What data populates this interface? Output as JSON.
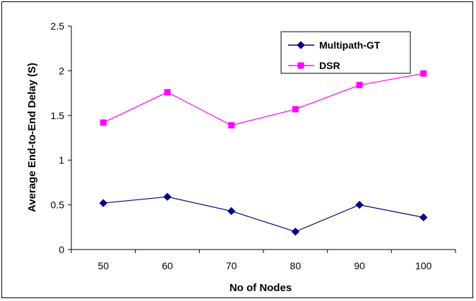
{
  "chart_data": {
    "type": "line",
    "title": "",
    "xlabel": "No of Nodes",
    "ylabel": "Average End-to-End Delay (S)",
    "categories": [
      "50",
      "60",
      "70",
      "80",
      "90",
      "100"
    ],
    "ylim": [
      0,
      2.5
    ],
    "yticks": [
      "0",
      "0.5",
      "1",
      "1.5",
      "2",
      "2.5"
    ],
    "grid": false,
    "legend_position": "top-right",
    "series": [
      {
        "name": "Multipath-GT",
        "values": [
          0.52,
          0.59,
          0.43,
          0.2,
          0.5,
          0.36
        ],
        "color": "#000080",
        "marker": "diamond"
      },
      {
        "name": "DSR",
        "values": [
          1.42,
          1.76,
          1.39,
          1.57,
          1.84,
          1.97
        ],
        "color": "#ff00ff",
        "marker": "square"
      }
    ]
  }
}
